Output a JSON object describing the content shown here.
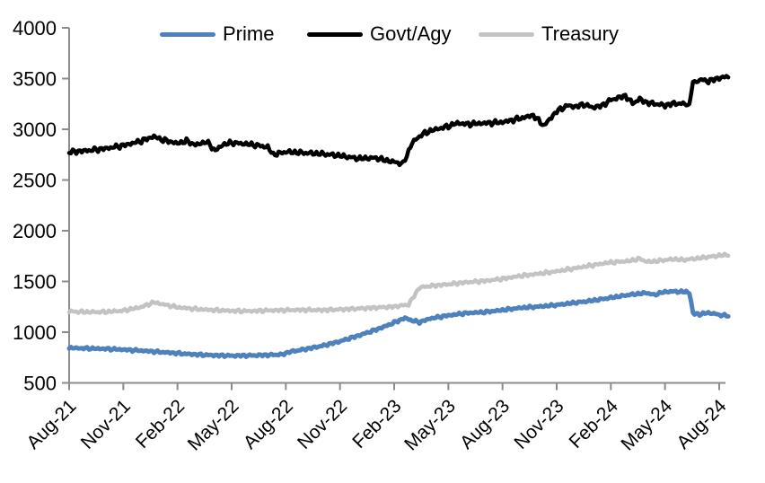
{
  "chart_data": {
    "type": "line",
    "title": "",
    "unit_note": "values read from y-axis scale 500-4000",
    "legend_position": "top",
    "grid": false,
    "x_axis": {
      "tick_labels": [
        "Aug-21",
        "Nov-21",
        "Feb-22",
        "May-22",
        "Aug-22",
        "Nov-22",
        "Feb-23",
        "May-23",
        "Aug-23",
        "Nov-23",
        "Feb-24",
        "May-24",
        "Aug-24"
      ],
      "tick_months": [
        0,
        3,
        6,
        9,
        12,
        15,
        18,
        21,
        24,
        27,
        30,
        33,
        36
      ],
      "range_months": [
        0,
        36.5
      ],
      "label_rotation_deg": -45
    },
    "y_axis": {
      "ticks": [
        "500",
        "1000",
        "1500",
        "2000",
        "2500",
        "3000",
        "3500",
        "4000"
      ],
      "tick_values": [
        500,
        1000,
        1500,
        2000,
        2500,
        3000,
        3500,
        4000
      ],
      "range": [
        500,
        4000
      ]
    },
    "series": [
      {
        "name": "Prime",
        "color": "#4f81bd",
        "points": [
          [
            0,
            845
          ],
          [
            1,
            840
          ],
          [
            2,
            836
          ],
          [
            3,
            828
          ],
          [
            4,
            818
          ],
          [
            5,
            805
          ],
          [
            6,
            792
          ],
          [
            7,
            780
          ],
          [
            8,
            772
          ],
          [
            9,
            768
          ],
          [
            10,
            770
          ],
          [
            11,
            775
          ],
          [
            11.8,
            780
          ],
          [
            12.2,
            806
          ],
          [
            13,
            830
          ],
          [
            14,
            865
          ],
          [
            15,
            910
          ],
          [
            16,
            965
          ],
          [
            17,
            1025
          ],
          [
            17.6,
            1065
          ],
          [
            18,
            1095
          ],
          [
            18.6,
            1140
          ],
          [
            19,
            1115
          ],
          [
            19.4,
            1098
          ],
          [
            20,
            1135
          ],
          [
            21,
            1165
          ],
          [
            22,
            1188
          ],
          [
            23,
            1198
          ],
          [
            24,
            1218
          ],
          [
            25,
            1240
          ],
          [
            26,
            1252
          ],
          [
            27,
            1268
          ],
          [
            28,
            1290
          ],
          [
            29,
            1312
          ],
          [
            30,
            1340
          ],
          [
            31,
            1368
          ],
          [
            32,
            1388
          ],
          [
            32.4,
            1366
          ],
          [
            32.8,
            1392
          ],
          [
            33.3,
            1402
          ],
          [
            34,
            1398
          ],
          [
            34.35,
            1392
          ],
          [
            34.55,
            1185
          ],
          [
            35,
            1175
          ],
          [
            35.3,
            1192
          ],
          [
            35.8,
            1180
          ],
          [
            36,
            1170
          ],
          [
            36.5,
            1162
          ]
        ]
      },
      {
        "name": "Govt/Agy",
        "color": "#000000",
        "points": [
          [
            0,
            2775
          ],
          [
            1,
            2790
          ],
          [
            2,
            2810
          ],
          [
            3,
            2840
          ],
          [
            4,
            2885
          ],
          [
            4.7,
            2930
          ],
          [
            5,
            2905
          ],
          [
            6,
            2860
          ],
          [
            6.5,
            2885
          ],
          [
            7,
            2845
          ],
          [
            7.6,
            2878
          ],
          [
            8.1,
            2788
          ],
          [
            8.5,
            2848
          ],
          [
            9,
            2868
          ],
          [
            10,
            2852
          ],
          [
            11,
            2825
          ],
          [
            11.3,
            2750
          ],
          [
            12,
            2778
          ],
          [
            13,
            2768
          ],
          [
            14,
            2758
          ],
          [
            15,
            2740
          ],
          [
            16,
            2712
          ],
          [
            17,
            2718
          ],
          [
            17.5,
            2695
          ],
          [
            18,
            2678
          ],
          [
            18.5,
            2660
          ],
          [
            19,
            2868
          ],
          [
            19.5,
            2945
          ],
          [
            20,
            2985
          ],
          [
            21,
            3030
          ],
          [
            21.5,
            3062
          ],
          [
            22,
            3050
          ],
          [
            23,
            3060
          ],
          [
            24,
            3070
          ],
          [
            25,
            3108
          ],
          [
            25.7,
            3138
          ],
          [
            26.3,
            3035
          ],
          [
            27,
            3178
          ],
          [
            27.6,
            3235
          ],
          [
            28,
            3222
          ],
          [
            28.5,
            3245
          ],
          [
            29,
            3215
          ],
          [
            29.5,
            3232
          ],
          [
            30,
            3290
          ],
          [
            30.8,
            3330
          ],
          [
            31.2,
            3255
          ],
          [
            31.6,
            3298
          ],
          [
            32,
            3262
          ],
          [
            32.5,
            3250
          ],
          [
            33,
            3235
          ],
          [
            33.5,
            3256
          ],
          [
            34,
            3250
          ],
          [
            34.35,
            3244
          ],
          [
            34.55,
            3462
          ],
          [
            35,
            3488
          ],
          [
            35.4,
            3474
          ],
          [
            35.8,
            3496
          ],
          [
            36,
            3505
          ],
          [
            36.5,
            3520
          ]
        ]
      },
      {
        "name": "Treasury",
        "color": "#c3c3c3",
        "points": [
          [
            0,
            1205
          ],
          [
            1,
            1198
          ],
          [
            2,
            1200
          ],
          [
            3,
            1212
          ],
          [
            4,
            1248
          ],
          [
            4.7,
            1295
          ],
          [
            5,
            1282
          ],
          [
            6,
            1245
          ],
          [
            7,
            1228
          ],
          [
            8,
            1218
          ],
          [
            9,
            1210
          ],
          [
            10,
            1208
          ],
          [
            11,
            1214
          ],
          [
            12,
            1218
          ],
          [
            13,
            1220
          ],
          [
            14,
            1218
          ],
          [
            15,
            1224
          ],
          [
            16,
            1232
          ],
          [
            17,
            1242
          ],
          [
            18,
            1252
          ],
          [
            18.8,
            1272
          ],
          [
            19.4,
            1440
          ],
          [
            20,
            1455
          ],
          [
            21,
            1472
          ],
          [
            22,
            1492
          ],
          [
            23,
            1505
          ],
          [
            24,
            1526
          ],
          [
            25,
            1555
          ],
          [
            26,
            1576
          ],
          [
            27,
            1600
          ],
          [
            28,
            1630
          ],
          [
            29,
            1660
          ],
          [
            29.6,
            1678
          ],
          [
            30,
            1688
          ],
          [
            31,
            1702
          ],
          [
            31.6,
            1724
          ],
          [
            32,
            1694
          ],
          [
            32.5,
            1700
          ],
          [
            33,
            1712
          ],
          [
            33.5,
            1720
          ],
          [
            34,
            1712
          ],
          [
            35,
            1732
          ],
          [
            36,
            1755
          ],
          [
            36.5,
            1764
          ]
        ]
      }
    ],
    "annotations": []
  },
  "colors": {
    "axis": "#8c8c8c",
    "background": "#ffffff",
    "text": "#000000"
  }
}
